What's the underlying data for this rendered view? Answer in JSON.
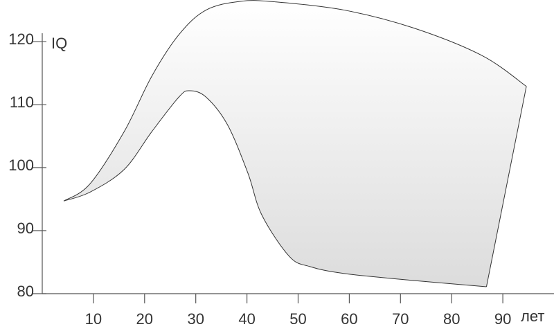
{
  "chart_data": {
    "type": "band",
    "y_label": "IQ",
    "x_label": "лет",
    "series": [
      {
        "x": [
          4.2,
          9.3,
          16,
          21.4,
          26.7,
          32,
          38.8,
          45.6,
          59,
          72.4,
          85.9,
          94.6
        ],
        "values": [
          94.7,
          97.4,
          105.7,
          114.5,
          121.1,
          125,
          126.4,
          126.3,
          125,
          122.2,
          117.8,
          112.9
        ]
      },
      {
        "x": [
          4.2,
          9.3,
          16,
          21.4,
          26.7,
          28.8,
          32,
          36.2,
          40.2,
          42.9,
          48.3,
          52.3,
          59,
          72.4,
          86.8
        ],
        "values": [
          94.7,
          96.1,
          99.7,
          105.7,
          111.2,
          112.2,
          111.2,
          106.8,
          99.1,
          92.5,
          85.9,
          84.3,
          83.2,
          82.1,
          81.1
        ]
      }
    ],
    "xlim": [
      0,
      100
    ],
    "ylim": [
      80,
      126.6
    ],
    "xticks": [
      10,
      20,
      30,
      40,
      50,
      60,
      70,
      80,
      90
    ],
    "yticks": [
      80,
      90,
      100,
      110,
      120
    ]
  }
}
